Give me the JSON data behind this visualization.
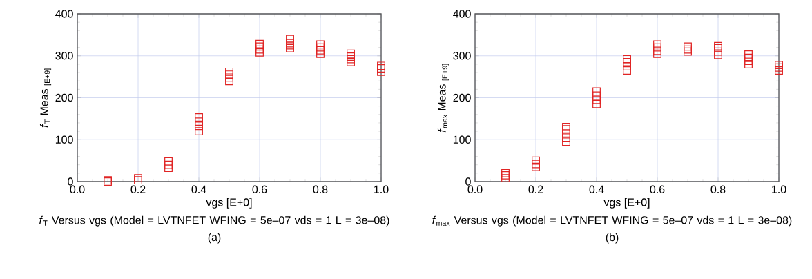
{
  "chart_data": [
    {
      "type": "scatter",
      "title": "*f*$_{T}$ Versus vgs (Model = LVTNFET WFING = 5e–07 vds = 1 L = 3e–08)",
      "xlabel": "vgs [E+0]",
      "ylabel": "*f*$_{T}$ Meas $_{[E+9]}$",
      "annotations": [
        "(a)"
      ],
      "x": [
        0.1,
        0.1,
        0.2,
        0.2,
        0.3,
        0.3,
        0.3,
        0.4,
        0.4,
        0.4,
        0.4,
        0.5,
        0.5,
        0.5,
        0.5,
        0.6,
        0.6,
        0.6,
        0.6,
        0.7,
        0.7,
        0.7,
        0.7,
        0.8,
        0.8,
        0.8,
        0.8,
        0.9,
        0.9,
        0.9,
        0.9,
        1.0,
        1.0,
        1.0
      ],
      "series": [
        {
          "color": "#e02424",
          "values": [
            0,
            3,
            3,
            8,
            33,
            40,
            48,
            120,
            133,
            143,
            153,
            240,
            248,
            255,
            262,
            308,
            315,
            322,
            328,
            318,
            325,
            330,
            340,
            305,
            313,
            320,
            327,
            285,
            292,
            298,
            305,
            262,
            270,
            276
          ]
        }
      ],
      "xlim": [
        0,
        1
      ],
      "ylim": [
        0,
        400
      ],
      "xticks": [
        {
          "value": 0,
          "label": "0.0"
        },
        {
          "value": 0.2,
          "label": "0.2"
        },
        {
          "value": 0.4,
          "label": "0.4"
        },
        {
          "value": 0.6,
          "label": "0.6"
        },
        {
          "value": 0.8,
          "label": "0.8"
        },
        {
          "value": 1,
          "label": "1.0"
        }
      ],
      "yticks": [
        0,
        100,
        200,
        300,
        400
      ],
      "grid": true,
      "marker": "square"
    },
    {
      "type": "scatter",
      "title": "*f*$_{max}$ Versus vgs (Model = LVTNFET WFING = 5e–07 vds = 1 L = 3e–08)",
      "xlabel": "vgs [E+0]",
      "ylabel": "*f*$_{max}$ Meas $_{[E+9]}$",
      "annotations": [
        "(b)"
      ],
      "x": [
        0.1,
        0.1,
        0.1,
        0.2,
        0.2,
        0.2,
        0.3,
        0.3,
        0.3,
        0.3,
        0.3,
        0.4,
        0.4,
        0.4,
        0.4,
        0.5,
        0.5,
        0.5,
        0.5,
        0.6,
        0.6,
        0.6,
        0.6,
        0.7,
        0.7,
        0.7,
        0.8,
        0.8,
        0.8,
        0.8,
        0.9,
        0.9,
        0.9,
        0.9,
        1.0,
        1.0,
        1.0
      ],
      "series": [
        {
          "color": "#e02424",
          "values": [
            8,
            15,
            20,
            35,
            42,
            50,
            95,
            105,
            115,
            125,
            130,
            185,
            195,
            205,
            215,
            265,
            275,
            285,
            292,
            305,
            312,
            320,
            327,
            310,
            315,
            322,
            302,
            310,
            318,
            323,
            280,
            288,
            295,
            303,
            265,
            272,
            278
          ]
        }
      ],
      "xlim": [
        0,
        1
      ],
      "ylim": [
        0,
        400
      ],
      "xticks": [
        {
          "value": 0,
          "label": "0.0"
        },
        {
          "value": 0.2,
          "label": "0.2"
        },
        {
          "value": 0.4,
          "label": "0.4"
        },
        {
          "value": 0.6,
          "label": "0.6"
        },
        {
          "value": 0.8,
          "label": "0.8"
        },
        {
          "value": 1,
          "label": "1.0"
        }
      ],
      "yticks": [
        0,
        100,
        200,
        300,
        400
      ],
      "grid": true,
      "marker": "square"
    }
  ]
}
